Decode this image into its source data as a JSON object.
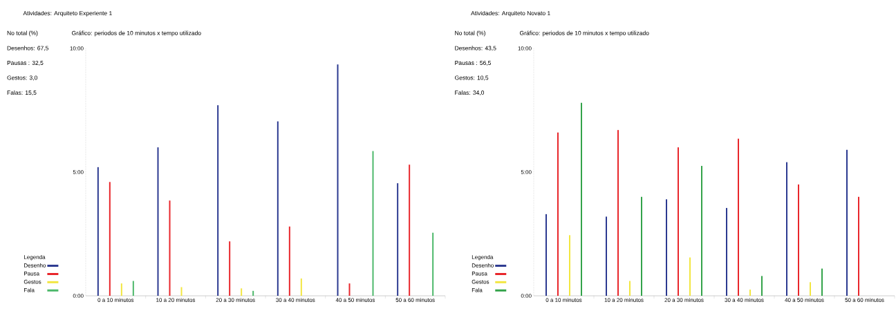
{
  "chart_data": [
    {
      "type": "bar",
      "title": "Atividades: Arquiteto Experiente 1",
      "subtitle": "Gráfico: periodos de 10 minutos x tempo utilizado",
      "annotations": [
        "No total (%)",
        "Desenhos: 67,5",
        "Pausas : 32,5",
        "Gestos: 3,0",
        "Falas: 15,5"
      ],
      "legend_title": "Legenda",
      "legend": "bottom left",
      "categories": [
        "0 a 10 minutos",
        "10 a 20 minutos",
        "20 a 30 minutos",
        "30 a 40 minutos",
        "40 a 50 minutos",
        "50 a 60 minutos"
      ],
      "series": [
        {
          "name": "Desenho",
          "color": "#2b3990",
          "values": [
            5.2,
            6.0,
            7.7,
            7.05,
            9.35,
            4.55
          ]
        },
        {
          "name": "Pausa",
          "color": "#e8262b",
          "values": [
            4.6,
            3.85,
            2.2,
            2.8,
            0.5,
            5.3
          ]
        },
        {
          "name": "Gestos",
          "color": "#f2e640",
          "values": [
            0.5,
            0.35,
            0.3,
            0.7,
            null,
            null
          ]
        },
        {
          "name": "Fala",
          "color": "#4cb86a",
          "values": [
            0.6,
            null,
            0.2,
            null,
            5.85,
            2.55
          ]
        }
      ],
      "ylim": [
        0,
        10
      ],
      "yticks": [
        {
          "value": 0,
          "label": "0:00"
        },
        {
          "value": 5,
          "label": "5:00"
        },
        {
          "value": 10,
          "label": "10:00"
        }
      ]
    },
    {
      "type": "bar",
      "title": "Atividades: Arquiteto Novato 1",
      "subtitle": "Gráfico: periodos de 10 minutos x tempo utilizado",
      "annotations": [
        "No total (%)",
        "Desenhos: 43,5",
        "Pausas : 56,5",
        "Gestos: 10,5",
        "Falas: 34,0"
      ],
      "legend_title": "Legenda",
      "legend": "bottom left",
      "categories": [
        "0 a 10 minutos",
        "10 a 20 minutos",
        "20 a 30 minutos",
        "30 a 40 minutos",
        "40 a 50 minutos",
        "50 a 60 minutos"
      ],
      "series": [
        {
          "name": "Desenho",
          "color": "#2b3990",
          "values": [
            3.3,
            3.2,
            3.9,
            3.55,
            5.4,
            5.9
          ]
        },
        {
          "name": "Pausa",
          "color": "#e8262b",
          "values": [
            6.6,
            6.7,
            6.0,
            6.35,
            4.5,
            4.0
          ]
        },
        {
          "name": "Gestos",
          "color": "#f2e640",
          "values": [
            2.45,
            0.6,
            1.55,
            0.25,
            0.55,
            null
          ]
        },
        {
          "name": "Fala",
          "color": "#33a34a",
          "values": [
            7.8,
            4.0,
            5.25,
            0.8,
            1.1,
            null
          ]
        }
      ],
      "ylim": [
        0,
        10
      ],
      "yticks": [
        {
          "value": 0,
          "label": "0:00"
        },
        {
          "value": 5,
          "label": "5:00"
        },
        {
          "value": 10,
          "label": "10:00"
        }
      ]
    }
  ]
}
